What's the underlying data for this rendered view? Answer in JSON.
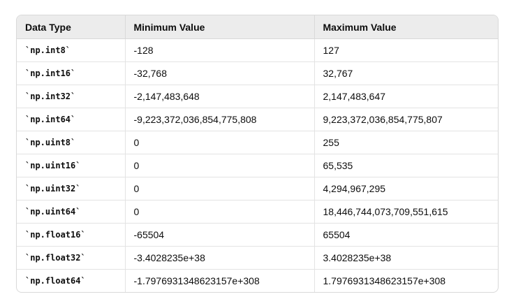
{
  "table": {
    "headers": [
      "Data Type",
      "Minimum Value",
      "Maximum Value"
    ],
    "rows": [
      [
        "`np.int8`",
        "-128",
        "127"
      ],
      [
        "`np.int16`",
        "-32,768",
        "32,767"
      ],
      [
        "`np.int32`",
        "-2,147,483,648",
        "2,147,483,647"
      ],
      [
        "`np.int64`",
        "-9,223,372,036,854,775,808",
        "9,223,372,036,854,775,807"
      ],
      [
        "`np.uint8`",
        "0",
        "255"
      ],
      [
        "`np.uint16`",
        "0",
        "65,535"
      ],
      [
        "`np.uint32`",
        "0",
        "4,294,967,295"
      ],
      [
        "`np.uint64`",
        "0",
        "18,446,744,073,709,551,615"
      ],
      [
        "`np.float16`",
        "-65504",
        "65504"
      ],
      [
        "`np.float32`",
        "-3.4028235e+38",
        "3.4028235e+38"
      ],
      [
        "`np.float64`",
        "-1.7976931348623157e+308",
        "1.7976931348623157e+308"
      ]
    ]
  }
}
